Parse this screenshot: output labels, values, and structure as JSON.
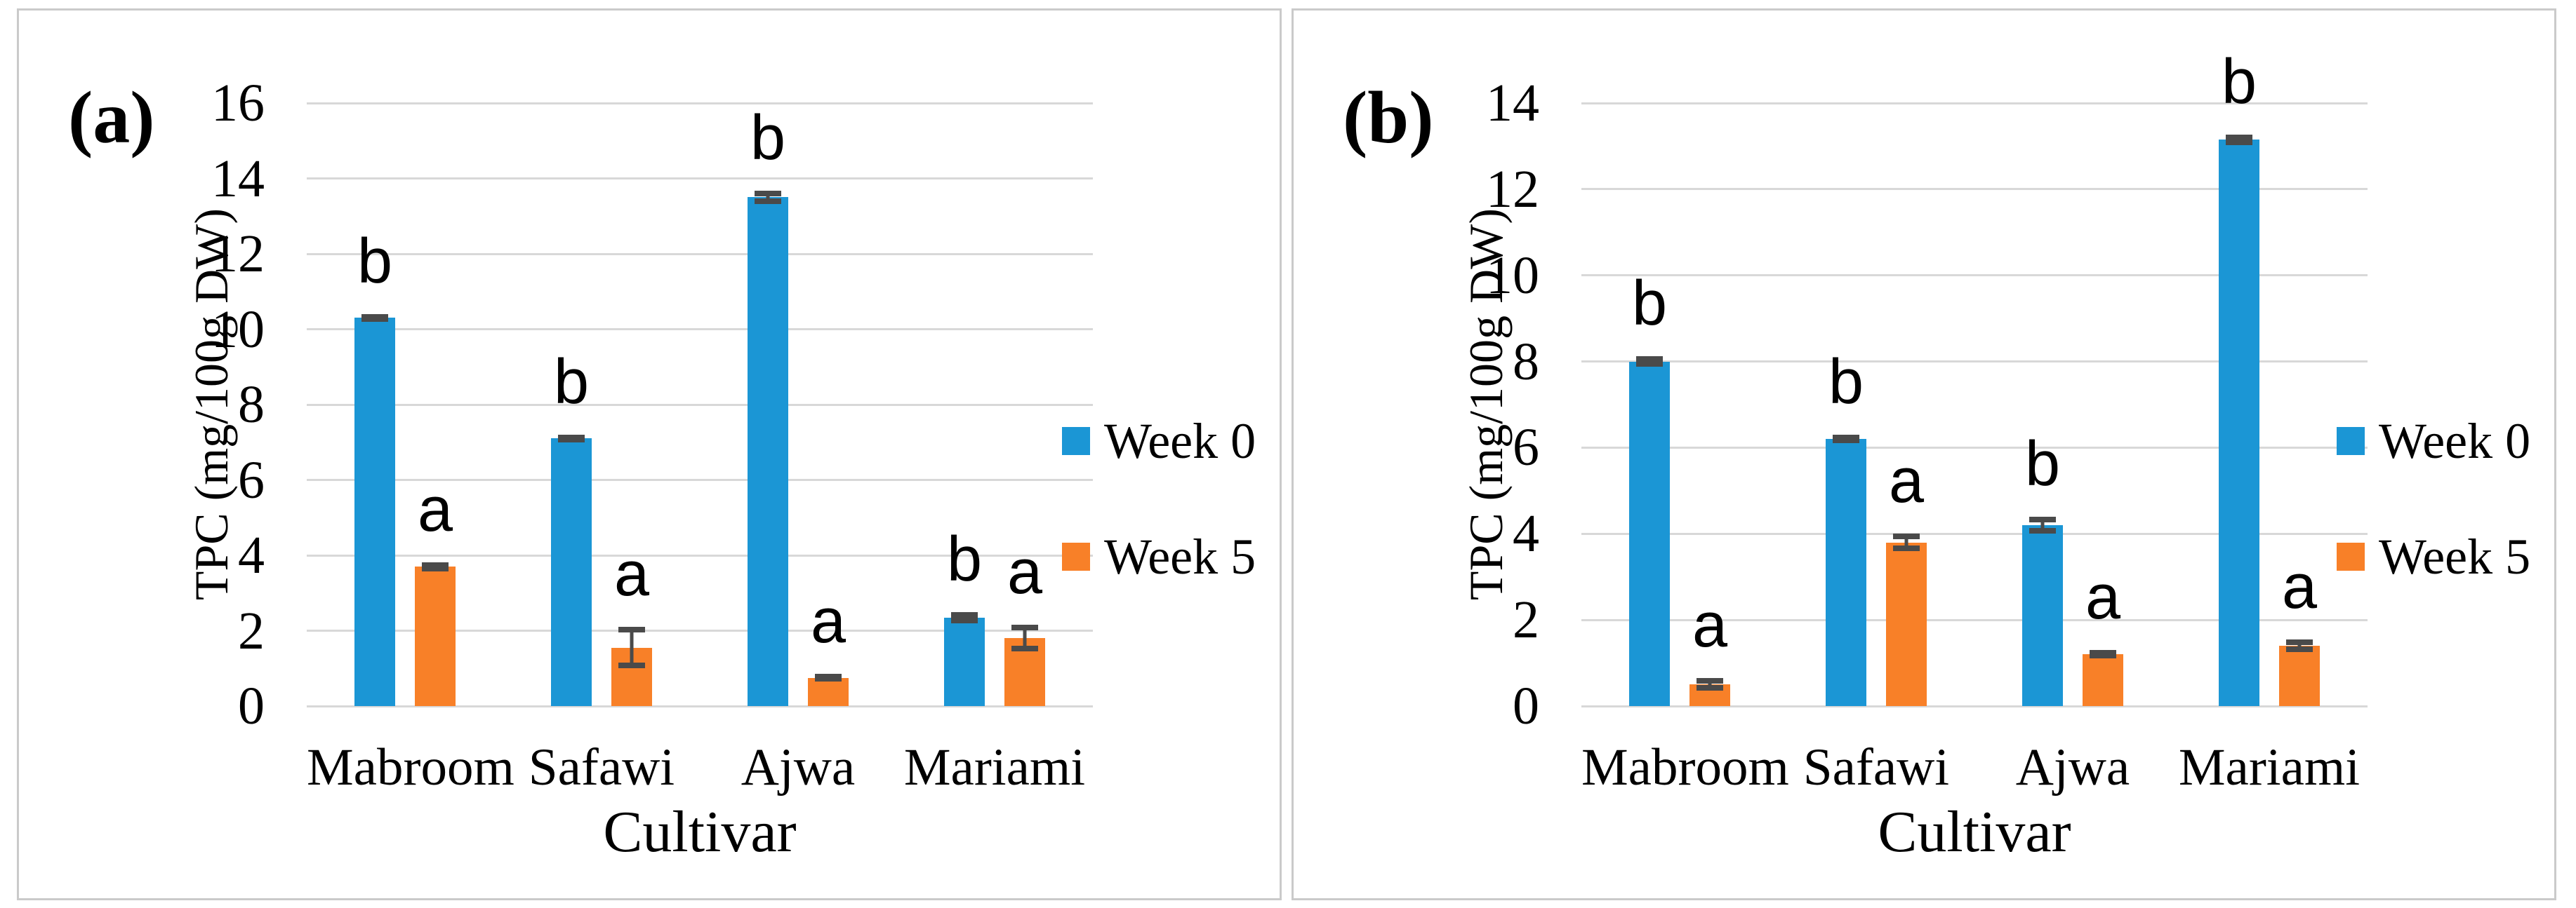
{
  "style": {
    "week0_color": "#1B96D5",
    "week5_color": "#F88028",
    "gridline_color": "#D8D8D8",
    "error_bar_color": "#4A4A4A",
    "panel_border_color": "#CACACA",
    "background_color": "#FFFFFF",
    "text_color": "#000000"
  },
  "chart_data": [
    {
      "type": "bar",
      "panel_label": "(a)",
      "xlabel": "Cultivar",
      "ylabel": "TPC (mg/100g DW)",
      "ylim": [
        0,
        16
      ],
      "ytick_step": 2,
      "grid": true,
      "legend_position": "right",
      "categories": [
        "Mabroom",
        "Safawi",
        "Ajwa",
        "Mariami"
      ],
      "series": [
        {
          "name": "Week 0",
          "color": "#1B96D5",
          "values": [
            10.3,
            7.1,
            13.5,
            2.35
          ],
          "errors": [
            0.1,
            0.1,
            0.18,
            0.15
          ],
          "sig_letters": [
            "b",
            "b",
            "b",
            "b"
          ]
        },
        {
          "name": "Week 5",
          "color": "#F88028",
          "values": [
            3.7,
            1.55,
            0.75,
            1.8
          ],
          "errors": [
            0.12,
            0.55,
            0.1,
            0.35
          ],
          "sig_letters": [
            "a",
            "a",
            "a",
            "a"
          ]
        }
      ]
    },
    {
      "type": "bar",
      "panel_label": "(b)",
      "xlabel": "Cultivar",
      "ylabel": "TPC (mg/100g DW)",
      "ylim": [
        0,
        14
      ],
      "ytick_step": 2,
      "grid": true,
      "legend_position": "right",
      "categories": [
        "Mabroom",
        "Safawi",
        "Ajwa",
        "Mariami"
      ],
      "series": [
        {
          "name": "Week 0",
          "color": "#1B96D5",
          "values": [
            8.0,
            6.2,
            4.2,
            13.15
          ],
          "errors": [
            0.12,
            0.1,
            0.2,
            0.12
          ],
          "sig_letters": [
            "b",
            "b",
            "b",
            "b"
          ]
        },
        {
          "name": "Week 5",
          "color": "#F88028",
          "values": [
            0.5,
            3.8,
            1.2,
            1.4
          ],
          "errors": [
            0.15,
            0.2,
            0.1,
            0.15
          ],
          "sig_letters": [
            "a",
            "a",
            "a",
            "a"
          ]
        }
      ]
    }
  ]
}
